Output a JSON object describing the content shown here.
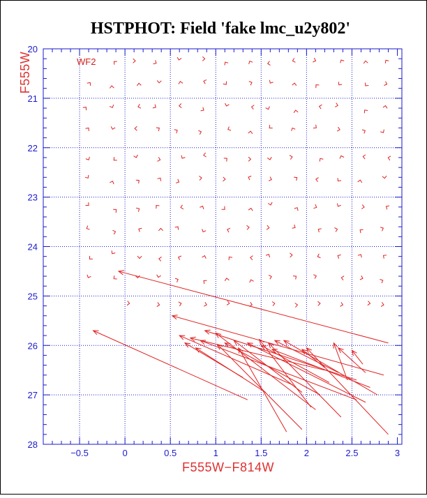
{
  "chart_data": {
    "type": "vector-field",
    "title": "HSTPHOT: Field 'fake lmc_u2y802'",
    "panel_label": "WF2",
    "xlabel": "F555W−F814W",
    "ylabel": "F555W",
    "xlim": [
      -0.9,
      3.05
    ],
    "ylim": [
      28,
      20
    ],
    "x_ticks": [
      -0.5,
      0,
      0.5,
      1,
      1.5,
      2,
      2.5,
      3
    ],
    "x_tick_labels": [
      "−0.5",
      "0",
      "0.5",
      "1",
      "1.5",
      "2",
      "2.5",
      "3"
    ],
    "y_ticks": [
      20,
      21,
      22,
      23,
      24,
      25,
      26,
      27,
      28
    ],
    "y_tick_labels": [
      "20",
      "21",
      "22",
      "23",
      "24",
      "25",
      "26",
      "27",
      "28"
    ],
    "x_grid": [
      -0.5,
      0,
      0.5,
      1,
      1.5,
      2,
      2.5
    ],
    "y_grid": [
      21,
      22,
      23,
      24,
      25,
      26,
      27
    ],
    "grid": true,
    "colors": {
      "axes": "#1a1acc",
      "grid": "#1a1acc",
      "arrows": "#e02020",
      "labels": "#e03030",
      "title": "#000000"
    },
    "long_vectors": [
      {
        "tip": [
          -0.35,
          25.7
        ],
        "tail": [
          1.35,
          27.1
        ]
      },
      {
        "tip": [
          -0.07,
          24.5
        ],
        "tail": [
          2.9,
          25.95
        ]
      },
      {
        "tip": [
          0.52,
          25.4
        ],
        "tail": [
          2.85,
          26.6
        ]
      },
      {
        "tip": [
          0.6,
          25.8
        ],
        "tail": [
          1.85,
          26.8
        ]
      },
      {
        "tip": [
          0.66,
          25.95
        ],
        "tail": [
          1.3,
          26.65
        ]
      },
      {
        "tip": [
          0.72,
          25.85
        ],
        "tail": [
          2.2,
          26.5
        ]
      },
      {
        "tip": [
          0.78,
          26.05
        ],
        "tail": [
          1.55,
          26.95
        ]
      },
      {
        "tip": [
          0.83,
          25.9
        ],
        "tail": [
          2.55,
          27.1
        ]
      },
      {
        "tip": [
          0.88,
          25.7
        ],
        "tail": [
          2.55,
          26.7
        ]
      },
      {
        "tip": [
          1.0,
          25.75
        ],
        "tail": [
          2.1,
          27.3
        ]
      },
      {
        "tip": [
          1.02,
          25.98
        ],
        "tail": [
          1.95,
          27.7
        ]
      },
      {
        "tip": [
          1.1,
          25.95
        ],
        "tail": [
          2.15,
          27.0
        ]
      },
      {
        "tip": [
          1.2,
          25.9
        ],
        "tail": [
          1.95,
          26.95
        ]
      },
      {
        "tip": [
          1.25,
          26.05
        ],
        "tail": [
          1.78,
          27.75
        ]
      },
      {
        "tip": [
          1.35,
          25.95
        ],
        "tail": [
          2.65,
          27.15
        ]
      },
      {
        "tip": [
          1.48,
          25.88
        ],
        "tail": [
          2.05,
          27.25
        ]
      },
      {
        "tip": [
          1.5,
          26.0
        ],
        "tail": [
          2.25,
          26.75
        ]
      },
      {
        "tip": [
          1.58,
          25.95
        ],
        "tail": [
          2.38,
          27.45
        ]
      },
      {
        "tip": [
          1.62,
          26.08
        ],
        "tail": [
          2.7,
          26.85
        ]
      },
      {
        "tip": [
          1.65,
          25.9
        ],
        "tail": [
          2.35,
          26.55
        ]
      },
      {
        "tip": [
          1.75,
          25.9
        ],
        "tail": [
          2.78,
          27.0
        ]
      },
      {
        "tip": [
          1.95,
          26.08
        ],
        "tail": [
          2.2,
          26.45
        ]
      },
      {
        "tip": [
          2.0,
          26.05
        ],
        "tail": [
          2.9,
          27.8
        ]
      },
      {
        "tip": [
          2.3,
          25.95
        ],
        "tail": [
          2.45,
          26.7
        ]
      },
      {
        "tip": [
          2.35,
          26.05
        ],
        "tail": [
          2.65,
          26.55
        ]
      },
      {
        "tip": [
          2.5,
          26.1
        ],
        "tail": [
          2.62,
          26.38
        ]
      }
    ]
  }
}
